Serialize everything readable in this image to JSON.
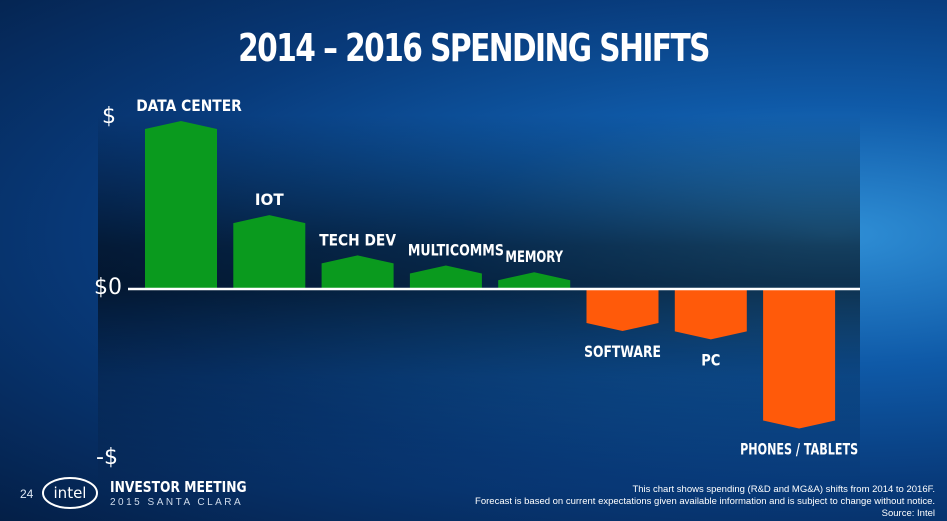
{
  "slide": {
    "title": "2014 – 2016 SPENDING SHIFTS",
    "page_number": "24",
    "logo_text": "intel",
    "event_title": "INVESTOR MEETING",
    "event_subtitle": "2015 SANTA CLARA",
    "note_line1": "This chart shows spending (R&D and MG&A) shifts from 2014  to 2016F.",
    "note_line2": "Forecast is based on current expectations given available information and is subject to change without notice.",
    "note_line3": "Source: Intel"
  },
  "axis": {
    "top_label": "$",
    "zero_label": "$0",
    "bottom_label": "-$"
  },
  "colors": {
    "positive": "#0a9a1e",
    "negative": "#ff5a0a",
    "axis": "#ffffff"
  },
  "chart_data": {
    "type": "bar",
    "title": "2014 – 2016 SPENDING SHIFTS",
    "categories": [
      "DATA CENTER",
      "IOT",
      "TECH DEV",
      "MULTICOMMS",
      "MEMORY",
      "SOFTWARE",
      "PC",
      "PHONES / TABLETS"
    ],
    "values": [
      1.0,
      0.44,
      0.2,
      0.14,
      0.1,
      -0.25,
      -0.3,
      -0.83
    ],
    "ylim": [
      -1,
      1
    ],
    "ytick_labels": [
      "-$",
      "$0",
      "$"
    ],
    "grid": false
  }
}
